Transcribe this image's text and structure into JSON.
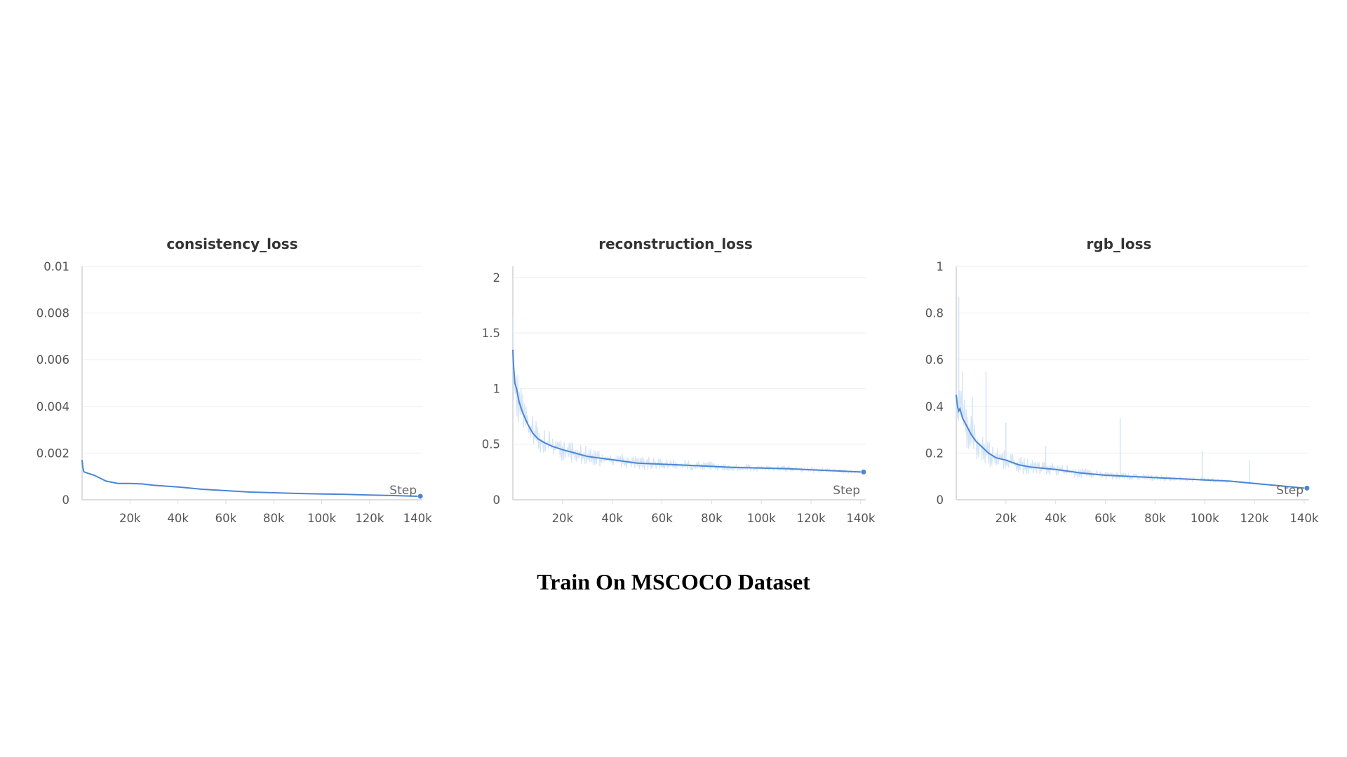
{
  "caption": "Train On MSCOCO Dataset",
  "colors": {
    "line": "#4a86d4",
    "raw": "#d4e4f7",
    "grid": "#eeeeee",
    "axis": "#dddddd"
  },
  "chart_data": [
    {
      "type": "line",
      "title": "consistency_loss",
      "xlabel": "Step",
      "ylabel": "",
      "xlim": [
        0,
        142000
      ],
      "ylim": [
        0,
        0.01
      ],
      "xticks": [
        20000,
        40000,
        60000,
        80000,
        100000,
        120000,
        140000
      ],
      "xtick_labels": [
        "20k",
        "40k",
        "60k",
        "80k",
        "100k",
        "120k",
        "140k"
      ],
      "yticks": [
        0,
        0.002,
        0.004,
        0.006,
        0.008,
        0.01
      ],
      "ytick_labels": [
        "0",
        "0.002",
        "0.004",
        "0.006",
        "0.008",
        "0.01"
      ],
      "grid": true,
      "series": [
        {
          "x": [
            0,
            300,
            700,
            2000,
            5000,
            8000,
            10000,
            15000,
            20000,
            25000,
            30000,
            40000,
            50000,
            60000,
            70000,
            80000,
            90000,
            100000,
            110000,
            120000,
            130000,
            140000
          ],
          "y": [
            0.0017,
            0.0014,
            0.0012,
            0.00115,
            0.00105,
            0.0009,
            0.0008,
            0.0007,
            0.0007,
            0.00068,
            0.00062,
            0.00055,
            0.00045,
            0.00039,
            0.00033,
            0.0003,
            0.00027,
            0.00025,
            0.00023,
            0.0002,
            0.00018,
            0.00015
          ]
        }
      ],
      "raw": {
        "upper": 0.0016,
        "lower": 0.0012,
        "end": 8e-05
      }
    },
    {
      "type": "line",
      "title": "reconstruction_loss",
      "xlabel": "Step",
      "ylabel": "",
      "xlim": [
        0,
        142000
      ],
      "ylim": [
        0,
        2.1
      ],
      "xticks": [
        20000,
        40000,
        60000,
        80000,
        100000,
        120000,
        140000
      ],
      "xtick_labels": [
        "20k",
        "40k",
        "60k",
        "80k",
        "100k",
        "120k",
        "140k"
      ],
      "yticks": [
        0,
        0.5,
        1,
        1.5,
        2
      ],
      "ytick_labels": [
        "0",
        "0.5",
        "1",
        "1.5",
        "2"
      ],
      "grid": true,
      "series": [
        {
          "x": [
            0,
            300,
            800,
            1500,
            2500,
            4000,
            6000,
            8000,
            10000,
            13000,
            16000,
            20000,
            25000,
            30000,
            40000,
            50000,
            60000,
            70000,
            80000,
            90000,
            100000,
            110000,
            120000,
            130000,
            140000
          ],
          "y": [
            1.35,
            1.2,
            1.05,
            1.0,
            0.88,
            0.78,
            0.68,
            0.6,
            0.55,
            0.51,
            0.48,
            0.45,
            0.42,
            0.39,
            0.36,
            0.33,
            0.32,
            0.31,
            0.3,
            0.29,
            0.285,
            0.28,
            0.27,
            0.26,
            0.25
          ]
        }
      ],
      "raw": {
        "upper": 0.28,
        "lower": 0.22,
        "end": 0.04
      }
    },
    {
      "type": "line",
      "title": "rgb_loss",
      "xlabel": "Step",
      "ylabel": "",
      "xlim": [
        0,
        142000
      ],
      "ylim": [
        0,
        1
      ],
      "xticks": [
        20000,
        40000,
        60000,
        80000,
        100000,
        120000,
        140000
      ],
      "xtick_labels": [
        "20k",
        "40k",
        "60k",
        "80k",
        "100k",
        "120k",
        "140k"
      ],
      "yticks": [
        0,
        0.2,
        0.4,
        0.6,
        0.8,
        1
      ],
      "ytick_labels": [
        "0",
        "0.2",
        "0.4",
        "0.6",
        "0.8",
        "1"
      ],
      "grid": true,
      "series": [
        {
          "x": [
            0,
            500,
            1000,
            1500,
            2500,
            4000,
            6000,
            8000,
            10000,
            13000,
            16000,
            20000,
            25000,
            30000,
            40000,
            50000,
            60000,
            70000,
            80000,
            90000,
            100000,
            110000,
            120000,
            130000,
            140000
          ],
          "y": [
            0.45,
            0.4,
            0.38,
            0.39,
            0.35,
            0.32,
            0.28,
            0.25,
            0.23,
            0.2,
            0.18,
            0.17,
            0.15,
            0.14,
            0.13,
            0.115,
            0.105,
            0.1,
            0.095,
            0.09,
            0.085,
            0.08,
            0.07,
            0.06,
            0.05
          ]
        }
      ],
      "raw": {
        "upper": 0.3,
        "lower": 0.28,
        "end": 0.01,
        "spikes": [
          [
            1000,
            0.87
          ],
          [
            2500,
            0.55
          ],
          [
            6500,
            0.44
          ],
          [
            12000,
            0.55
          ],
          [
            20000,
            0.33
          ],
          [
            36000,
            0.23
          ],
          [
            66000,
            0.35
          ],
          [
            99000,
            0.21
          ],
          [
            118000,
            0.17
          ]
        ]
      }
    }
  ]
}
